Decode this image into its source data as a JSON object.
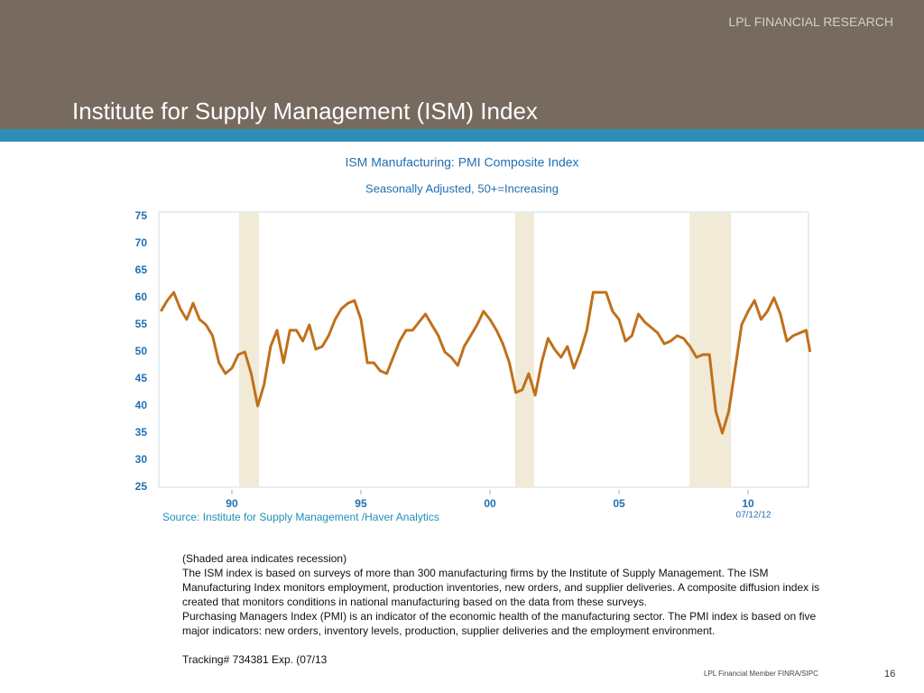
{
  "header": {
    "brand": "LPL FINANCIAL RESEARCH",
    "title": "Institute for Supply Management (ISM) Index"
  },
  "chart_data": {
    "type": "line",
    "title": "ISM Manufacturing: PMI Composite Index",
    "subtitle": "Seasonally Adjusted, 50+=Increasing",
    "x": [
      1987.25,
      1987.5,
      1987.75,
      1988,
      1988.25,
      1988.5,
      1988.75,
      1989,
      1989.25,
      1989.5,
      1989.75,
      1990,
      1990.25,
      1990.5,
      1990.75,
      1991,
      1991.25,
      1991.5,
      1991.75,
      1992,
      1992.25,
      1992.5,
      1992.75,
      1993,
      1993.25,
      1993.5,
      1993.75,
      1994,
      1994.25,
      1994.5,
      1994.75,
      1995,
      1995.25,
      1995.5,
      1995.75,
      1996,
      1996.25,
      1996.5,
      1996.75,
      1997,
      1997.25,
      1997.5,
      1997.75,
      1998,
      1998.25,
      1998.5,
      1998.75,
      1999,
      1999.25,
      1999.5,
      1999.75,
      2000,
      2000.25,
      2000.5,
      2000.75,
      2001,
      2001.25,
      2001.5,
      2001.75,
      2002,
      2002.25,
      2002.5,
      2002.75,
      2003,
      2003.25,
      2003.5,
      2003.75,
      2004,
      2004.25,
      2004.5,
      2004.75,
      2005,
      2005.25,
      2005.5,
      2005.75,
      2006,
      2006.25,
      2006.5,
      2006.75,
      2007,
      2007.25,
      2007.5,
      2007.75,
      2008,
      2008.25,
      2008.5,
      2008.75,
      2009,
      2009.25,
      2009.5,
      2009.75,
      2010,
      2010.25,
      2010.5,
      2010.75,
      2011,
      2011.25,
      2011.5,
      2011.75,
      2012,
      2012.25,
      2012.4
    ],
    "values": [
      57.5,
      59.5,
      61,
      58,
      56,
      59,
      56,
      55,
      53,
      48,
      46,
      47,
      49.5,
      50,
      46,
      40,
      44,
      51,
      54,
      48,
      54,
      54,
      52,
      55,
      50.5,
      51,
      53,
      56,
      58,
      59,
      59.5,
      56,
      48,
      48,
      46.5,
      46,
      49,
      52,
      54,
      54,
      55.5,
      57,
      55,
      53,
      50,
      49,
      47.5,
      51,
      53,
      55,
      57.5,
      56,
      54,
      51.5,
      48,
      42.5,
      43,
      46,
      42,
      48,
      52.5,
      50.5,
      49,
      51,
      47,
      50,
      54,
      61,
      61,
      61,
      57.5,
      56,
      52,
      53,
      57,
      55.5,
      54.5,
      53.5,
      51.5,
      52,
      53,
      52.5,
      51,
      49,
      49.5,
      49.5,
      39,
      35,
      39,
      47,
      55,
      57.5,
      59.5,
      56,
      57.5,
      60,
      57,
      52,
      53,
      53.5,
      54,
      50
    ],
    "color": "#c0701a",
    "recessions": [
      [
        1990.28,
        1991.05
      ],
      [
        2000.98,
        2001.71
      ],
      [
        2007.73,
        2009.34
      ]
    ],
    "xlim": [
      1987.17,
      2012.34
    ],
    "ylim": [
      25,
      75
    ],
    "yticks": [
      25,
      30,
      35,
      40,
      45,
      50,
      55,
      60,
      65,
      70,
      75
    ],
    "xticks": [
      {
        "value": 1990,
        "label": "90"
      },
      {
        "value": 1995,
        "label": "95"
      },
      {
        "value": 2000,
        "label": "00"
      },
      {
        "value": 2005,
        "label": "05"
      },
      {
        "value": 2010,
        "label": "10"
      }
    ],
    "source": "Source:  Institute for Supply Management /Haver Analytics",
    "date": "07/12/12"
  },
  "notes": [
    "(Shaded area indicates recession)",
    "The ISM index is based on surveys of more than 300 manufacturing firms by the Institute of Supply Management. The ISM Manufacturing Index monitors employment, production inventories, new orders, and supplier deliveries. A composite diffusion index is created that monitors conditions in national manufacturing based on the data from these surveys.",
    "Purchasing Managers Index (PMI) is an indicator of the economic health of the manufacturing sector. The PMI index is based on five major indicators: new orders, inventory levels, production, supplier deliveries and the employment environment.",
    "Tracking# 734381 Exp. (07/13"
  ],
  "footer": {
    "member": "LPL Financial Member FINRA/SIPC",
    "page": "16"
  }
}
